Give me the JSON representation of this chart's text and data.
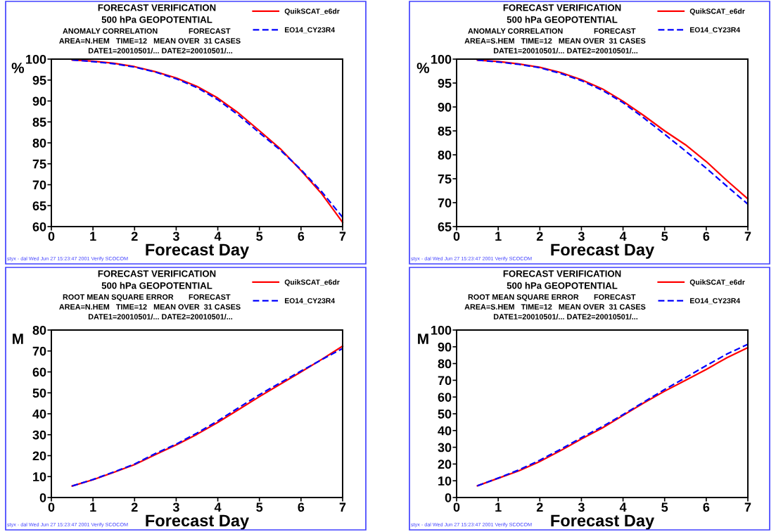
{
  "chart_data": [
    {
      "type": "line",
      "title": "FORECAST VERIFICATION",
      "subtitle": "500 hPa GEOPOTENTIAL",
      "xlabel": "Forecast Day",
      "ylabel": "%",
      "annotations": [
        "ANOMALY CORRELATION",
        "FORECAST",
        "AREA=N.HEM   TIME=12   MEAN OVER  31 CASES",
        "DATE1=20010501/... DATE2=20010501/...",
        "styx - dal Wed Jun 27 15:23:47 2001 Verify SCOCOM"
      ],
      "x": [
        0.5,
        1,
        1.5,
        2,
        2.5,
        3,
        3.5,
        4,
        4.5,
        5,
        5.5,
        6,
        6.5,
        7
      ],
      "xlim": [
        0,
        7
      ],
      "xticks": [
        0,
        1,
        2,
        3,
        4,
        5,
        6,
        7
      ],
      "ylim": [
        60,
        100
      ],
      "yticks": [
        60,
        65,
        70,
        75,
        80,
        85,
        90,
        95,
        100
      ],
      "grid": false,
      "legend": "top right",
      "series": [
        {
          "name": "QuikSCAT_e6dr",
          "color": "#ff0000",
          "line_style": "solid",
          "values": [
            99.8,
            99.5,
            99.0,
            98.2,
            97.0,
            95.5,
            93.5,
            90.7,
            87.1,
            82.9,
            78.6,
            73.4,
            67.8,
            61.0
          ]
        },
        {
          "name": "EO14_CY23R4",
          "color": "#0000ff",
          "line_style": "dashed",
          "values": [
            99.8,
            99.4,
            98.9,
            98.1,
            96.9,
            95.3,
            93.2,
            90.3,
            86.6,
            82.4,
            78.3,
            73.6,
            68.3,
            62.2
          ]
        }
      ]
    },
    {
      "type": "line",
      "title": "FORECAST VERIFICATION",
      "subtitle": "500 hPa GEOPOTENTIAL",
      "xlabel": "Forecast Day",
      "ylabel": "%",
      "annotations": [
        "ANOMALY CORRELATION",
        "FORECAST",
        "AREA=S.HEM   TIME=12   MEAN OVER  31 CASES",
        "DATE1=20010501/... DATE2=20010501/...",
        "styx - dal Wed Jun 27 15:23:47 2001 Verify SCOCOM"
      ],
      "x": [
        0.5,
        1,
        1.5,
        2,
        2.5,
        3,
        3.5,
        4,
        4.5,
        5,
        5.5,
        6,
        6.5,
        7
      ],
      "xlim": [
        0,
        7
      ],
      "xticks": [
        0,
        1,
        2,
        3,
        4,
        5,
        6,
        7
      ],
      "ylim": [
        65,
        100
      ],
      "yticks": [
        65,
        70,
        75,
        80,
        85,
        90,
        95,
        100
      ],
      "grid": false,
      "legend": "top right",
      "series": [
        {
          "name": "QuikSCAT_e6dr",
          "color": "#ff0000",
          "line_style": "solid",
          "values": [
            99.8,
            99.5,
            99.0,
            98.3,
            97.2,
            95.7,
            93.8,
            91.2,
            88.2,
            85.0,
            82.1,
            78.6,
            74.6,
            70.8
          ]
        },
        {
          "name": "EO14_CY23R4",
          "color": "#0000ff",
          "line_style": "dashed",
          "values": [
            99.8,
            99.4,
            98.9,
            98.2,
            97.0,
            95.5,
            93.5,
            90.9,
            87.7,
            84.3,
            80.8,
            77.2,
            73.4,
            69.7
          ]
        }
      ]
    },
    {
      "type": "line",
      "title": "FORECAST VERIFICATION",
      "subtitle": "500 hPa GEOPOTENTIAL",
      "xlabel": "Forecast Day",
      "ylabel": "M",
      "annotations": [
        "ROOT MEAN SQUARE ERROR",
        "FORECAST",
        "AREA=N.HEM   TIME=12   MEAN OVER  31 CASES",
        "DATE1=20010501/... DATE2=20010501/...",
        "styx - dal Wed Jun 27 15:23:47 2001 Verify SCOCOM"
      ],
      "x": [
        0.5,
        1,
        1.5,
        2,
        2.5,
        3,
        3.5,
        4,
        4.5,
        5,
        5.5,
        6,
        6.5,
        7
      ],
      "xlim": [
        0,
        7
      ],
      "xticks": [
        0,
        1,
        2,
        3,
        4,
        5,
        6,
        7
      ],
      "ylim": [
        0,
        80
      ],
      "yticks": [
        0,
        10,
        20,
        30,
        40,
        50,
        60,
        70,
        80
      ],
      "grid": false,
      "legend": "top right",
      "series": [
        {
          "name": "QuikSCAT_e6dr",
          "color": "#ff0000",
          "line_style": "solid",
          "values": [
            5.5,
            8.5,
            12.0,
            15.7,
            20.5,
            25.1,
            30.2,
            35.9,
            42.0,
            48.2,
            54.1,
            60.0,
            66.0,
            72.3
          ]
        },
        {
          "name": "EO14_CY23R4",
          "color": "#0000ff",
          "line_style": "dashed",
          "values": [
            5.5,
            8.6,
            12.2,
            16.0,
            21.0,
            25.5,
            30.8,
            36.6,
            42.9,
            49.1,
            54.8,
            60.4,
            65.9,
            71.2
          ]
        }
      ]
    },
    {
      "type": "line",
      "title": "FORECAST VERIFICATION",
      "subtitle": "500 hPa GEOPOTENTIAL",
      "xlabel": "Forecast Day",
      "ylabel": "M",
      "annotations": [
        "ROOT MEAN SQUARE ERROR",
        "FORECAST",
        "AREA=S.HEM   TIME=12   MEAN OVER  31 CASES",
        "DATE1=20010501/... DATE2=20010501/...",
        "styx - dal Wed Jun 27 15:23:47 2001 Verify SCOCOM"
      ],
      "x": [
        0.5,
        1,
        1.5,
        2,
        2.5,
        3,
        3.5,
        4,
        4.5,
        5,
        5.5,
        6,
        6.5,
        7
      ],
      "xlim": [
        0,
        7
      ],
      "xticks": [
        0,
        1,
        2,
        3,
        4,
        5,
        6,
        7
      ],
      "ylim": [
        0,
        100
      ],
      "yticks": [
        0,
        10,
        20,
        30,
        40,
        50,
        60,
        70,
        80,
        90,
        100
      ],
      "grid": false,
      "legend": "top right",
      "series": [
        {
          "name": "QuikSCAT_e6dr",
          "color": "#ff0000",
          "line_style": "solid",
          "values": [
            7.0,
            11.5,
            16.0,
            21.5,
            28.0,
            35.0,
            41.5,
            49.0,
            56.5,
            63.5,
            70.0,
            76.5,
            83.5,
            89.5
          ]
        },
        {
          "name": "EO14_CY23R4",
          "color": "#0000ff",
          "line_style": "dashed",
          "values": [
            7.0,
            11.6,
            16.5,
            22.3,
            28.8,
            35.7,
            42.3,
            49.5,
            57.0,
            64.5,
            71.5,
            78.8,
            85.7,
            91.5
          ]
        }
      ]
    }
  ]
}
